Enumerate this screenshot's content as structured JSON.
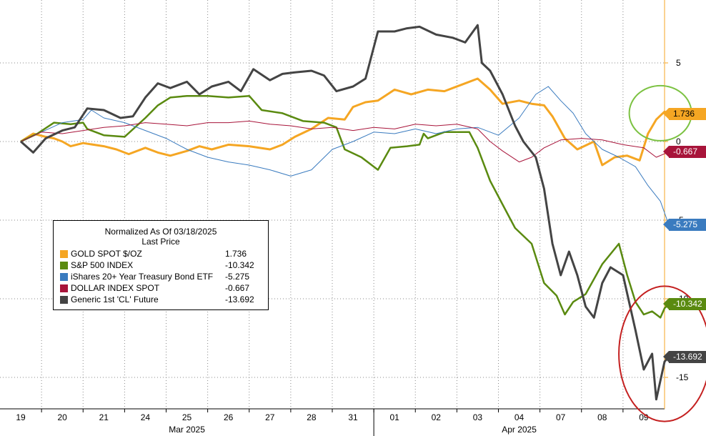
{
  "chart_data": {
    "type": "line",
    "legend": {
      "title": "Normalized As Of 03/18/2025",
      "subtitle": "Last Price",
      "placement": "bottom-left"
    },
    "x_ticks": [
      "19",
      "20",
      "21",
      "24",
      "25",
      "26",
      "27",
      "28",
      "31",
      "01",
      "02",
      "03",
      "04",
      "07",
      "08",
      "09"
    ],
    "month_labels": [
      "Mar 2025",
      "Apr 2025"
    ],
    "ylim": [
      -17,
      9
    ],
    "y_ticks": [
      5,
      0,
      -5,
      -10,
      -15
    ],
    "y_tick_labels": [
      "5",
      "0",
      "-5",
      "-10",
      "-15"
    ],
    "grid": true,
    "series": [
      {
        "name": "GOLD SPOT $/OZ",
        "last": "1.736",
        "color": "#f5a623",
        "points": [
          [
            0,
            0
          ],
          [
            0.3,
            0.5
          ],
          [
            0.6,
            0.3
          ],
          [
            0.8,
            0.2
          ],
          [
            1.0,
            0.0
          ],
          [
            1.2,
            -0.3
          ],
          [
            1.5,
            -0.1
          ],
          [
            2.0,
            -0.3
          ],
          [
            2.3,
            -0.5
          ],
          [
            2.6,
            -0.8
          ],
          [
            3.0,
            -0.4
          ],
          [
            3.3,
            -0.7
          ],
          [
            3.6,
            -0.9
          ],
          [
            4.0,
            -0.6
          ],
          [
            4.3,
            -0.3
          ],
          [
            4.6,
            -0.5
          ],
          [
            5.0,
            -0.2
          ],
          [
            5.5,
            -0.3
          ],
          [
            6.0,
            -0.5
          ],
          [
            6.3,
            -0.2
          ],
          [
            6.6,
            0.3
          ],
          [
            7.0,
            0.8
          ],
          [
            7.4,
            1.5
          ],
          [
            7.8,
            1.4
          ],
          [
            8.0,
            2.2
          ],
          [
            8.3,
            2.5
          ],
          [
            8.6,
            2.6
          ],
          [
            9.0,
            3.3
          ],
          [
            9.4,
            3.0
          ],
          [
            9.8,
            3.3
          ],
          [
            10.2,
            3.2
          ],
          [
            10.6,
            3.6
          ],
          [
            11.0,
            4.0
          ],
          [
            11.3,
            3.3
          ],
          [
            11.6,
            2.4
          ],
          [
            12.0,
            2.6
          ],
          [
            12.3,
            2.4
          ],
          [
            12.6,
            2.3
          ],
          [
            12.8,
            1.6
          ],
          [
            13.1,
            0.2
          ],
          [
            13.4,
            -0.5
          ],
          [
            13.8,
            0.0
          ],
          [
            14.0,
            -1.5
          ],
          [
            14.3,
            -1.0
          ],
          [
            14.6,
            -0.9
          ],
          [
            14.9,
            -1.2
          ],
          [
            15.1,
            0.5
          ],
          [
            15.3,
            1.4
          ],
          [
            15.5,
            1.9
          ],
          [
            15.6,
            1.736
          ]
        ]
      },
      {
        "name": "S&P 500 INDEX",
        "last": "-10.342",
        "color": "#5a8a10",
        "points": [
          [
            0,
            0
          ],
          [
            0.4,
            0.5
          ],
          [
            0.8,
            1.2
          ],
          [
            1.2,
            1.1
          ],
          [
            1.5,
            1.2
          ],
          [
            1.6,
            0.8
          ],
          [
            2.0,
            0.4
          ],
          [
            2.5,
            0.3
          ],
          [
            3.0,
            1.5
          ],
          [
            3.3,
            2.3
          ],
          [
            3.6,
            2.8
          ],
          [
            4.0,
            2.9
          ],
          [
            4.5,
            2.9
          ],
          [
            5.0,
            2.8
          ],
          [
            5.5,
            2.9
          ],
          [
            5.8,
            2.0
          ],
          [
            6.3,
            1.8
          ],
          [
            6.8,
            1.3
          ],
          [
            7.3,
            1.2
          ],
          [
            7.6,
            0.9
          ],
          [
            7.8,
            -0.5
          ],
          [
            8.2,
            -1.0
          ],
          [
            8.6,
            -1.8
          ],
          [
            8.9,
            -0.4
          ],
          [
            9.3,
            -0.3
          ],
          [
            9.6,
            -0.2
          ],
          [
            9.7,
            0.5
          ],
          [
            9.8,
            0.2
          ],
          [
            10.2,
            0.6
          ],
          [
            10.8,
            0.6
          ],
          [
            11.0,
            -0.4
          ],
          [
            11.3,
            -2.5
          ],
          [
            11.6,
            -4.0
          ],
          [
            11.9,
            -5.5
          ],
          [
            12.3,
            -6.5
          ],
          [
            12.6,
            -9.0
          ],
          [
            12.9,
            -9.8
          ],
          [
            13.1,
            -11.0
          ],
          [
            13.3,
            -10.2
          ],
          [
            13.6,
            -9.7
          ],
          [
            14.0,
            -7.8
          ],
          [
            14.4,
            -6.5
          ],
          [
            14.6,
            -8.5
          ],
          [
            14.8,
            -10.2
          ],
          [
            15.0,
            -11.0
          ],
          [
            15.2,
            -10.8
          ],
          [
            15.4,
            -11.2
          ],
          [
            15.5,
            -10.6
          ],
          [
            15.6,
            -10.342
          ]
        ]
      },
      {
        "name": "iShares 20+ Year Treasury Bond ETF",
        "last": "-5.275",
        "color": "#3a7bbf",
        "points": [
          [
            0,
            0
          ],
          [
            0.5,
            0.6
          ],
          [
            1.0,
            1.2
          ],
          [
            1.5,
            1.4
          ],
          [
            1.7,
            2.0
          ],
          [
            2.0,
            1.5
          ],
          [
            2.5,
            1.2
          ],
          [
            3.0,
            0.7
          ],
          [
            3.5,
            0.2
          ],
          [
            4.0,
            -0.5
          ],
          [
            4.5,
            -1.0
          ],
          [
            5.0,
            -1.3
          ],
          [
            5.5,
            -1.5
          ],
          [
            6.0,
            -1.8
          ],
          [
            6.5,
            -2.2
          ],
          [
            7.0,
            -1.8
          ],
          [
            7.5,
            -0.5
          ],
          [
            8.0,
            0.0
          ],
          [
            8.5,
            0.6
          ],
          [
            9.0,
            0.5
          ],
          [
            9.5,
            0.8
          ],
          [
            10.0,
            0.5
          ],
          [
            10.5,
            0.8
          ],
          [
            11.0,
            0.9
          ],
          [
            11.5,
            0.4
          ],
          [
            12.0,
            1.5
          ],
          [
            12.4,
            3.0
          ],
          [
            12.7,
            3.5
          ],
          [
            13.0,
            2.6
          ],
          [
            13.3,
            1.8
          ],
          [
            13.6,
            0.5
          ],
          [
            14.0,
            -0.5
          ],
          [
            14.4,
            -1.0
          ],
          [
            14.8,
            -1.6
          ],
          [
            15.1,
            -2.8
          ],
          [
            15.4,
            -3.8
          ],
          [
            15.6,
            -5.275
          ]
        ]
      },
      {
        "name": "DOLLAR INDEX SPOT",
        "last": "-0.667",
        "color": "#a8143a",
        "points": [
          [
            0,
            0
          ],
          [
            0.5,
            0.6
          ],
          [
            1.0,
            0.5
          ],
          [
            1.5,
            0.7
          ],
          [
            2.0,
            0.9
          ],
          [
            2.5,
            1.0
          ],
          [
            3.0,
            1.2
          ],
          [
            3.5,
            1.1
          ],
          [
            4.0,
            1.0
          ],
          [
            4.5,
            1.2
          ],
          [
            5.0,
            1.2
          ],
          [
            5.5,
            1.3
          ],
          [
            6.0,
            1.1
          ],
          [
            6.5,
            1.0
          ],
          [
            7.0,
            0.8
          ],
          [
            7.5,
            0.9
          ],
          [
            8.0,
            0.7
          ],
          [
            8.5,
            0.9
          ],
          [
            9.0,
            0.8
          ],
          [
            9.5,
            1.1
          ],
          [
            10.0,
            1.0
          ],
          [
            10.5,
            1.1
          ],
          [
            11.0,
            0.8
          ],
          [
            11.3,
            0.0
          ],
          [
            11.6,
            -0.6
          ],
          [
            12.0,
            -1.3
          ],
          [
            12.3,
            -1.0
          ],
          [
            12.6,
            -0.4
          ],
          [
            13.0,
            0.1
          ],
          [
            13.5,
            0.2
          ],
          [
            14.0,
            0.1
          ],
          [
            14.5,
            -0.2
          ],
          [
            15.0,
            -0.4
          ],
          [
            15.3,
            -1.0
          ],
          [
            15.6,
            -0.667
          ]
        ]
      },
      {
        "name": "Generic 1st 'CL' Future",
        "last": "-13.692",
        "color": "#444444",
        "points": [
          [
            0,
            0
          ],
          [
            0.3,
            -0.7
          ],
          [
            0.6,
            0.2
          ],
          [
            1.0,
            0.7
          ],
          [
            1.3,
            0.9
          ],
          [
            1.6,
            2.1
          ],
          [
            2.0,
            2.0
          ],
          [
            2.4,
            1.5
          ],
          [
            2.7,
            1.6
          ],
          [
            3.0,
            2.8
          ],
          [
            3.3,
            3.7
          ],
          [
            3.6,
            3.4
          ],
          [
            4.0,
            3.8
          ],
          [
            4.3,
            3.0
          ],
          [
            4.6,
            3.5
          ],
          [
            5.0,
            3.8
          ],
          [
            5.3,
            3.2
          ],
          [
            5.6,
            4.6
          ],
          [
            6.0,
            3.9
          ],
          [
            6.3,
            4.3
          ],
          [
            6.6,
            4.4
          ],
          [
            7.0,
            4.5
          ],
          [
            7.3,
            4.2
          ],
          [
            7.6,
            3.2
          ],
          [
            8.0,
            3.5
          ],
          [
            8.3,
            4.0
          ],
          [
            8.6,
            7.0
          ],
          [
            9.0,
            7.0
          ],
          [
            9.3,
            7.2
          ],
          [
            9.6,
            7.3
          ],
          [
            10.0,
            6.8
          ],
          [
            10.4,
            6.6
          ],
          [
            10.7,
            6.3
          ],
          [
            11.0,
            7.4
          ],
          [
            11.1,
            5.0
          ],
          [
            11.3,
            4.5
          ],
          [
            11.6,
            3.0
          ],
          [
            11.9,
            1.0
          ],
          [
            12.1,
            0.0
          ],
          [
            12.4,
            -1.0
          ],
          [
            12.6,
            -3.0
          ],
          [
            12.8,
            -6.5
          ],
          [
            13.0,
            -8.5
          ],
          [
            13.2,
            -7.0
          ],
          [
            13.4,
            -8.5
          ],
          [
            13.6,
            -10.5
          ],
          [
            13.8,
            -11.2
          ],
          [
            14.0,
            -9.0
          ],
          [
            14.2,
            -8.0
          ],
          [
            14.5,
            -8.5
          ],
          [
            14.8,
            -12.0
          ],
          [
            15.0,
            -14.5
          ],
          [
            15.2,
            -13.5
          ],
          [
            15.3,
            -16.4
          ],
          [
            15.5,
            -14.0
          ],
          [
            15.6,
            -13.692
          ]
        ]
      }
    ],
    "annotations": [
      {
        "type": "ellipse",
        "color": "#7cc242",
        "cx": 15.4,
        "cy": 1.8,
        "rx": 0.75,
        "ry": 1.75
      },
      {
        "type": "ellipse",
        "color": "#c42020",
        "cx": 15.5,
        "cy": -13.5,
        "rx": 1.1,
        "ry": 4.3
      }
    ]
  }
}
